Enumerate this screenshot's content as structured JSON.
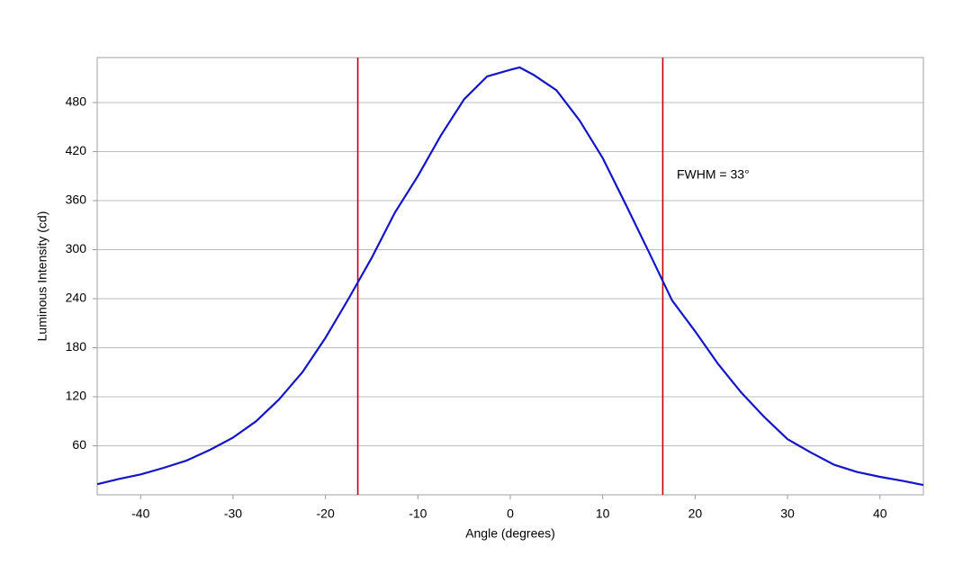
{
  "chart_data": {
    "type": "line",
    "x_label": "Angle (degrees)",
    "y_label": "Luminous Intensity (cd)",
    "x": [
      -44.7,
      -42.5,
      -40,
      -37.5,
      -35,
      -32.5,
      -30,
      -27.5,
      -25,
      -22.5,
      -20,
      -17.5,
      -15,
      -12.5,
      -10,
      -7.5,
      -5,
      -2.5,
      0,
      1,
      2.5,
      5,
      7.5,
      10,
      12.5,
      15,
      17.5,
      20,
      22.5,
      25,
      27.5,
      30,
      32.5,
      35,
      37.5,
      40,
      42.5,
      44.7
    ],
    "values": [
      13,
      19,
      25,
      33,
      42,
      55,
      70,
      90,
      117,
      150,
      192,
      240,
      290,
      345,
      390,
      440,
      484,
      512,
      520,
      523,
      514,
      495,
      458,
      412,
      355,
      297,
      238,
      200,
      160,
      125,
      95,
      68,
      52,
      37,
      28,
      22,
      17,
      12
    ],
    "color": "#1414c8",
    "vlines": [
      {
        "value": -16.5,
        "color": "#c00000"
      },
      {
        "value": 16.5,
        "color": "#c00000"
      }
    ],
    "annotation": "FWHM = 33°",
    "xlim": [
      -44.7,
      44.7
    ],
    "ylim": [
      0,
      535
    ],
    "xticks": [
      -40,
      -30,
      -20,
      -10,
      0,
      10,
      20,
      30,
      40
    ],
    "yticks": [
      60,
      120,
      180,
      240,
      300,
      360,
      420,
      480
    ],
    "grid": true
  }
}
